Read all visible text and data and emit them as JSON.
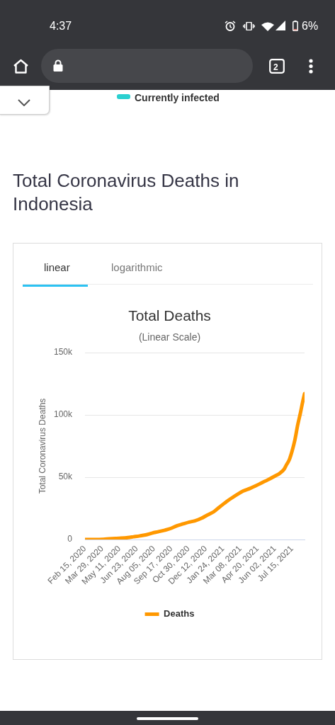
{
  "chart_data": {
    "type": "line",
    "title": "Total Deaths",
    "subtitle": "(Linear Scale)",
    "ylabel": "Total Coronavirus Deaths",
    "annotations": [
      "4:37",
      "6%",
      "2",
      "Currently infected",
      "Total Coronavirus Deaths in Indonesia",
      "linear",
      "logarithmic"
    ],
    "x": [
      "2020-02-15",
      "2020-03-15",
      "2020-04-01",
      "2020-04-15",
      "2020-05-01",
      "2020-05-15",
      "2020-06-01",
      "2020-06-15",
      "2020-07-01",
      "2020-07-15",
      "2020-08-01",
      "2020-08-15",
      "2020-09-01",
      "2020-09-15",
      "2020-10-01",
      "2020-10-15",
      "2020-11-01",
      "2020-11-15",
      "2020-12-01",
      "2020-12-15",
      "2021-01-01",
      "2021-01-15",
      "2021-02-01",
      "2021-02-15",
      "2021-03-01",
      "2021-03-15",
      "2021-04-01",
      "2021-04-15",
      "2021-05-01",
      "2021-05-15",
      "2021-06-01",
      "2021-06-15",
      "2021-06-25",
      "2021-07-01",
      "2021-07-08",
      "2021-07-15",
      "2021-07-22",
      "2021-07-29",
      "2021-08-05",
      "2021-08-10",
      "2021-08-15"
    ],
    "series": [
      {
        "name": "Deaths",
        "color": "#ff9800",
        "values": [
          0,
          0,
          200,
          500,
          800,
          1100,
          1600,
          2200,
          2900,
          3700,
          5200,
          6200,
          7500,
          8800,
          11000,
          12400,
          14000,
          15000,
          17000,
          19500,
          22300,
          26000,
          30300,
          33400,
          36300,
          38900,
          41000,
          43000,
          45600,
          47800,
          50700,
          53300,
          56400,
          60000,
          64000,
          71000,
          80000,
          92000,
          102000,
          110000,
          117000
        ]
      }
    ],
    "xlim": [
      "2020-02-15",
      "2021-08-15"
    ],
    "xticks": [
      {
        "value": "2020-02-15",
        "label": "Feb 15, 2020"
      },
      {
        "value": "2020-03-29",
        "label": "Mar 29, 2020"
      },
      {
        "value": "2020-05-11",
        "label": "May 11, 2020"
      },
      {
        "value": "2020-06-23",
        "label": "Jun 23, 2020"
      },
      {
        "value": "2020-08-05",
        "label": "Aug 05, 2020"
      },
      {
        "value": "2020-09-17",
        "label": "Sep 17, 2020"
      },
      {
        "value": "2020-10-30",
        "label": "Oct 30, 2020"
      },
      {
        "value": "2020-12-12",
        "label": "Dec 12, 2020"
      },
      {
        "value": "2021-01-24",
        "label": "Jan 24, 2021"
      },
      {
        "value": "2021-03-08",
        "label": "Mar 08, 2021"
      },
      {
        "value": "2021-04-20",
        "label": "Apr 20, 2021"
      },
      {
        "value": "2021-06-02",
        "label": "Jun 02, 2021"
      },
      {
        "value": "2021-07-15",
        "label": "Jul 15, 2021"
      }
    ],
    "ylim": [
      0,
      150000
    ],
    "yticks": [
      0,
      {
        "value": 50000,
        "label": "50k"
      },
      {
        "value": 100000,
        "label": "100k"
      },
      {
        "value": 150000,
        "label": "150k"
      }
    ],
    "grid": "y",
    "legend": "bottom",
    "marker": "none"
  }
}
